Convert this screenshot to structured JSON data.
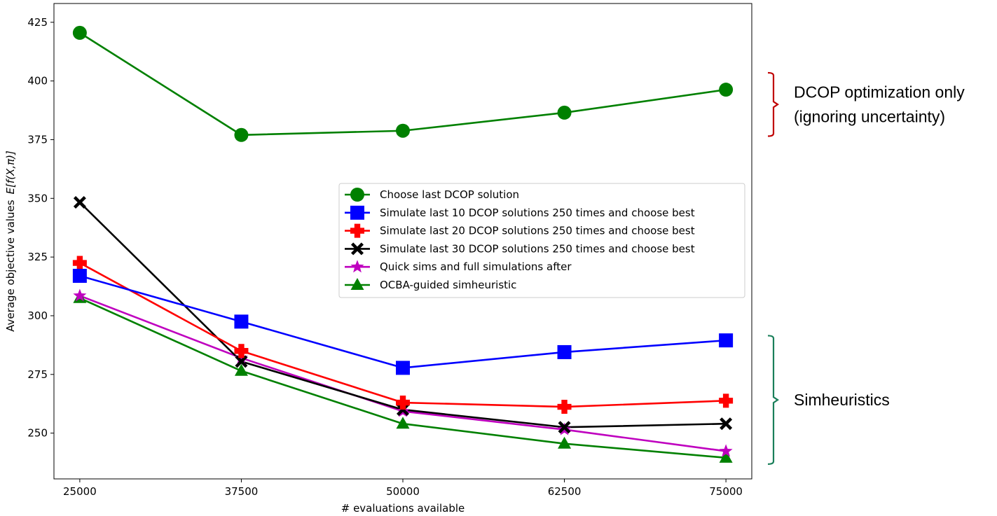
{
  "chart_data": {
    "type": "line",
    "xlabel": "# evaluations available",
    "ylabel": "Average objective values",
    "ylabel_math": "E[f(X,π)]",
    "x": [
      25000,
      37500,
      50000,
      62500,
      75000
    ],
    "x_tick_labels": [
      "25000",
      "37500",
      "50000",
      "62500",
      "75000"
    ],
    "y_ticks": [
      250,
      275,
      300,
      325,
      350,
      375,
      400,
      425
    ],
    "y_tick_labels": [
      "250",
      "275",
      "300",
      "325",
      "350",
      "375",
      "400",
      "425"
    ],
    "xlim": [
      23000,
      77000
    ],
    "ylim": [
      230.5,
      433
    ],
    "grid": false,
    "legend_position": "center-right",
    "series": [
      {
        "name": "Choose last DCOP solution",
        "color": "#008000",
        "marker": "circle",
        "values": [
          420.5,
          377,
          378.8,
          386.5,
          396.3
        ]
      },
      {
        "name": "Simulate last 10 DCOP solutions 250 times and choose best",
        "color": "#0000ff",
        "marker": "square",
        "values": [
          317,
          297.5,
          277.8,
          284.5,
          289.5
        ]
      },
      {
        "name": "Simulate last 20 DCOP solutions 250 times and choose best",
        "color": "#ff0000",
        "marker": "plus",
        "values": [
          322.5,
          285,
          263,
          261.2,
          263.8
        ]
      },
      {
        "name": "Simulate last 30 DCOP solutions 250 times and choose best",
        "color": "#000000",
        "marker": "x",
        "values": [
          348.3,
          280.5,
          260,
          252.5,
          254
        ]
      },
      {
        "name": "Quick sims and full simulations after",
        "color": "#bf00bf",
        "marker": "star",
        "values": [
          308.5,
          282,
          259.3,
          251.5,
          242.3
        ]
      },
      {
        "name": "OCBA-guided simheuristic",
        "color": "#008000",
        "marker": "triangle",
        "values": [
          307.5,
          276.5,
          254,
          245.5,
          239.5
        ]
      }
    ],
    "annotations": [
      {
        "text_lines": [
          "DCOP optimization only",
          "(ignoring uncertainty)"
        ],
        "bracket_color": "#c00000",
        "y_range": [
          376.5,
          403.5
        ]
      },
      {
        "text_lines": [
          "Simheuristics"
        ],
        "bracket_color": "#1a7f5a",
        "y_range": [
          236.8,
          291.5
        ]
      }
    ]
  }
}
